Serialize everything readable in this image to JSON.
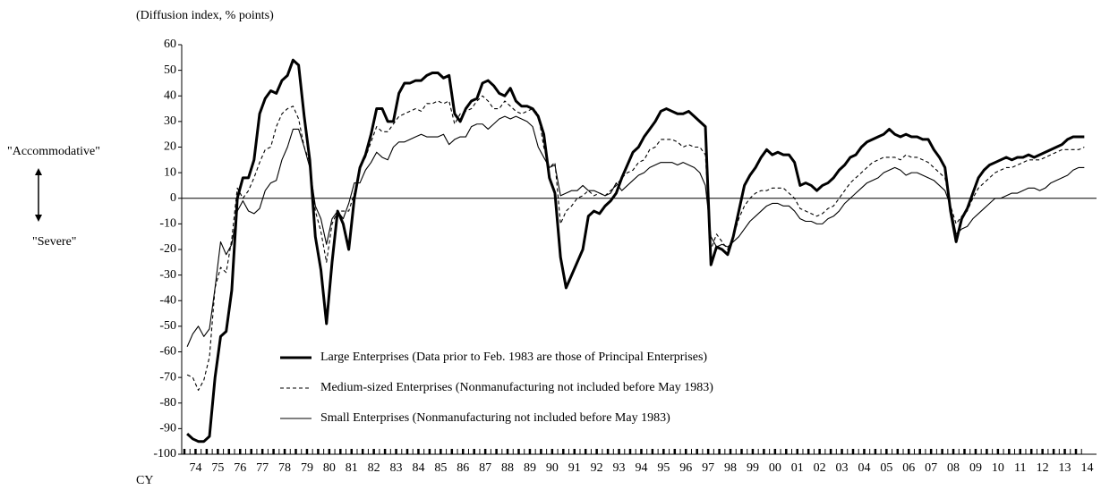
{
  "chart_data": {
    "type": "line",
    "y_label": "(Diffusion index, % points)",
    "x_label": "CY",
    "annotations": [
      "\"Accommodative\"",
      "\"Severe\""
    ],
    "categories": [
      null,
      "74",
      null,
      null,
      null,
      "75",
      null,
      null,
      null,
      "76",
      null,
      null,
      null,
      "77",
      null,
      null,
      null,
      "78",
      null,
      null,
      null,
      "79",
      null,
      null,
      null,
      "80",
      null,
      null,
      null,
      "81",
      null,
      null,
      null,
      "82",
      null,
      null,
      null,
      "83",
      null,
      null,
      null,
      "84",
      null,
      null,
      null,
      "85",
      null,
      null,
      null,
      "86",
      null,
      null,
      null,
      "87",
      null,
      null,
      null,
      "88",
      null,
      null,
      null,
      "89",
      null,
      null,
      null,
      "90",
      null,
      null,
      null,
      "91",
      null,
      null,
      null,
      "92",
      null,
      null,
      null,
      "93",
      null,
      null,
      null,
      "94",
      null,
      null,
      null,
      "95",
      null,
      null,
      null,
      "96",
      null,
      null,
      null,
      "97",
      null,
      null,
      null,
      "98",
      null,
      null,
      null,
      "99",
      null,
      null,
      null,
      "00",
      null,
      null,
      null,
      "01",
      null,
      null,
      null,
      "02",
      null,
      null,
      null,
      "03",
      null,
      null,
      null,
      "04",
      null,
      null,
      null,
      "05",
      null,
      null,
      null,
      "06",
      null,
      null,
      null,
      "07",
      null,
      null,
      null,
      "08",
      null,
      null,
      null,
      "09",
      null,
      null,
      null,
      "10",
      null,
      null,
      null,
      "11",
      null,
      null,
      null,
      "12",
      null,
      null,
      null,
      "13",
      null,
      null,
      null,
      "14"
    ],
    "series": [
      {
        "name": "Large Enterprises (Data prior to Feb. 1983 are those of Principal Enterprises)",
        "color": "#000000",
        "style": "thick",
        "values": [
          -92,
          -94,
          -95,
          -95,
          -93,
          -70,
          -54,
          -52,
          -36,
          0,
          8,
          8,
          15,
          33,
          39,
          42,
          41,
          46,
          48,
          54,
          52,
          32,
          15,
          -15,
          -28,
          -49,
          -25,
          -5,
          -10,
          -20,
          0,
          12,
          17,
          25,
          35,
          35,
          30,
          30,
          41,
          45,
          45,
          46,
          46,
          48,
          49,
          49,
          47,
          48,
          33,
          30,
          35,
          38,
          39,
          45,
          46,
          44,
          41,
          40,
          43,
          38,
          36,
          36,
          35,
          32,
          25,
          8,
          2,
          -23,
          -35,
          -30,
          -25,
          -20,
          -7,
          -5,
          -6,
          -3,
          -1,
          2,
          8,
          13,
          18,
          20,
          24,
          27,
          30,
          34,
          35,
          34,
          33,
          33,
          34,
          32,
          30,
          28,
          -26,
          -19,
          -20,
          -22,
          -15,
          -5,
          5,
          9,
          12,
          16,
          19,
          17,
          18,
          17,
          17,
          14,
          5,
          6,
          5,
          3,
          5,
          6,
          8,
          11,
          13,
          16,
          17,
          20,
          22,
          23,
          24,
          25,
          27,
          25,
          24,
          25,
          24,
          24,
          23,
          23,
          19,
          16,
          12,
          -5,
          -17,
          -8,
          -4,
          2,
          8,
          11,
          13,
          14,
          15,
          16,
          15,
          16,
          16,
          17,
          16,
          17,
          18,
          19,
          20,
          21,
          23,
          24,
          24,
          24
        ]
      },
      {
        "name": "Medium-sized Enterprises (Nonmanufacturing not included before May 1983)",
        "color": "#000000",
        "style": "dashed",
        "values": [
          -69,
          -70,
          -75,
          -71,
          -62,
          -35,
          -27,
          -29,
          -16,
          4,
          0,
          3,
          8,
          14,
          19,
          20,
          28,
          33,
          35,
          36,
          31,
          20,
          14,
          -5,
          -13,
          -25,
          -10,
          -5,
          -5,
          -5,
          2,
          12,
          16,
          22,
          28,
          26,
          26,
          29,
          32,
          33,
          34,
          35,
          34,
          37,
          37,
          38,
          37,
          38,
          29,
          33,
          34,
          35,
          38,
          40,
          38,
          35,
          35,
          38,
          36,
          34,
          33,
          34,
          35,
          33,
          20,
          12,
          14,
          -10,
          -5,
          -3,
          0,
          1,
          3,
          1,
          2,
          1,
          3,
          5,
          8,
          10,
          11,
          14,
          15,
          19,
          20,
          23,
          23,
          23,
          22,
          20,
          21,
          20,
          20,
          17,
          -20,
          -14,
          -17,
          -20,
          -15,
          -8,
          -3,
          0,
          2,
          3,
          3,
          4,
          4,
          4,
          2,
          0,
          -4,
          -5,
          -6,
          -7,
          -6,
          -4,
          -3,
          0,
          3,
          6,
          8,
          10,
          12,
          14,
          15,
          16,
          16,
          16,
          15,
          17,
          16,
          16,
          15,
          14,
          12,
          10,
          8,
          -3,
          -10,
          -7,
          -5,
          0,
          4,
          6,
          8,
          10,
          11,
          12,
          12,
          13,
          14,
          15,
          15,
          15,
          16,
          17,
          18,
          19,
          19,
          19,
          19,
          20
        ]
      },
      {
        "name": "Small Enterprises (Nonmanufacturing not included before May 1983)",
        "color": "#000000",
        "style": "thin",
        "values": [
          -58,
          -53,
          -50,
          -54,
          -51,
          -35,
          -17,
          -22,
          -18,
          -5,
          -1,
          -5,
          -6,
          -4,
          3,
          6,
          7,
          15,
          20,
          27,
          27,
          20,
          12,
          -3,
          -8,
          -18,
          -8,
          -5,
          -8,
          -2,
          6,
          6,
          11,
          14,
          18,
          16,
          15,
          20,
          22,
          22,
          23,
          24,
          25,
          24,
          24,
          24,
          25,
          21,
          23,
          24,
          24,
          28,
          29,
          29,
          27,
          29,
          31,
          32,
          31,
          32,
          31,
          30,
          28,
          20,
          16,
          12,
          13,
          1,
          2,
          3,
          3,
          5,
          3,
          3,
          2,
          1,
          2,
          6,
          3,
          5,
          7,
          9,
          10,
          12,
          13,
          14,
          14,
          14,
          13,
          14,
          13,
          12,
          10,
          5,
          -15,
          -19,
          -18,
          -19,
          -17,
          -15,
          -12,
          -9,
          -7,
          -5,
          -3,
          -2,
          -2,
          -3,
          -3,
          -5,
          -8,
          -9,
          -9,
          -10,
          -10,
          -8,
          -7,
          -5,
          -2,
          0,
          2,
          4,
          6,
          7,
          8,
          10,
          11,
          12,
          11,
          9,
          10,
          10,
          9,
          8,
          7,
          5,
          3,
          -3,
          -14,
          -12,
          -11,
          -8,
          -6,
          -4,
          -2,
          0,
          0,
          1,
          2,
          2,
          3,
          4,
          4,
          3,
          4,
          6,
          7,
          8,
          9,
          11,
          12,
          12
        ]
      }
    ],
    "ylim": [
      -100,
      60
    ],
    "yticks": [
      -100,
      -90,
      -80,
      -70,
      -60,
      -50,
      -40,
      -30,
      -20,
      -10,
      0,
      10,
      20,
      30,
      40,
      50,
      60
    ],
    "grid": false
  }
}
